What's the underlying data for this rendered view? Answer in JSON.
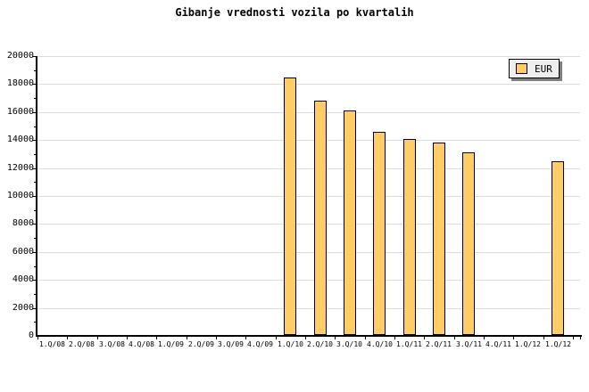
{
  "title": "Gibanje vrednosti vozila po kvartalih",
  "legend": {
    "label": "EUR"
  },
  "colors": {
    "bar_fill": "#FFCC66",
    "bar_border": "#000000",
    "grid": "#DCDCDC",
    "axis": "#000000",
    "legend_bg": "#EFEFEF",
    "legend_shadow": "#808080",
    "background": "#FFFFFF",
    "text": "#000000"
  },
  "chart_data": {
    "type": "bar",
    "title": "Gibanje vrednosti vozila po kvartalih",
    "categories": [
      "1.Q/08",
      "2.Q/08",
      "3.Q/08",
      "4.Q/08",
      "1.Q/09",
      "2.Q/09",
      "3.Q/09",
      "4.Q/09",
      "1.Q/10",
      "2.Q/10",
      "3.Q/10",
      "4.Q/10",
      "1.Q/11",
      "2.Q/11",
      "3.Q/11",
      "4.Q/11",
      "1.Q/12",
      "1.Q/12"
    ],
    "series": [
      {
        "name": "EUR",
        "values": [
          null,
          null,
          null,
          null,
          null,
          null,
          null,
          null,
          18450,
          16800,
          16100,
          14600,
          14050,
          13850,
          13100,
          null,
          null,
          12500
        ]
      }
    ],
    "xlabel": "",
    "ylabel": "",
    "ylim": [
      0,
      20000
    ],
    "ytick_major": 2000,
    "ytick_minor": 1000,
    "yticks": [
      0,
      2000,
      4000,
      6000,
      8000,
      10000,
      12000,
      14000,
      16000,
      18000,
      20000
    ],
    "grid": "horizontal",
    "legend_position": "top-right",
    "legend_entries": [
      "EUR"
    ]
  }
}
